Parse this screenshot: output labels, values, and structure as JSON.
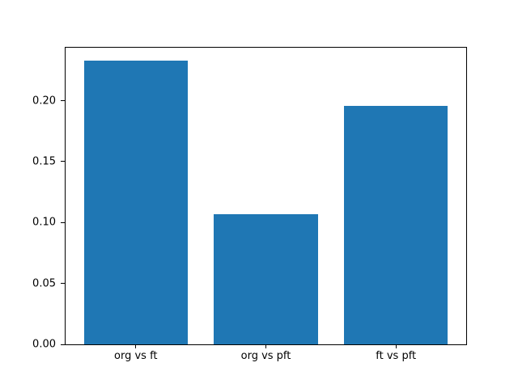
{
  "figure": {
    "background": "#ffffff"
  },
  "chart_data": {
    "type": "bar",
    "title": "",
    "xlabel": "",
    "ylabel": "",
    "categories": [
      "org vs ft",
      "org vs pft",
      "ft vs pft"
    ],
    "values": [
      0.233,
      0.107,
      0.196
    ],
    "bar_positions": [
      0,
      1,
      2
    ],
    "bar_width": 0.8,
    "bar_color": "#1f77b4",
    "yticks": [
      0.0,
      0.05,
      0.1,
      0.15,
      0.2
    ],
    "ytick_labels": [
      "0.00",
      "0.05",
      "0.10",
      "0.15",
      "0.20"
    ],
    "ylim": [
      0,
      0.2435
    ],
    "xlim": [
      -0.54,
      2.54
    ],
    "grid": false,
    "legend": null,
    "axes_facecolor": "#ffffff",
    "spine_color": "#000000",
    "text_color": "#000000"
  }
}
